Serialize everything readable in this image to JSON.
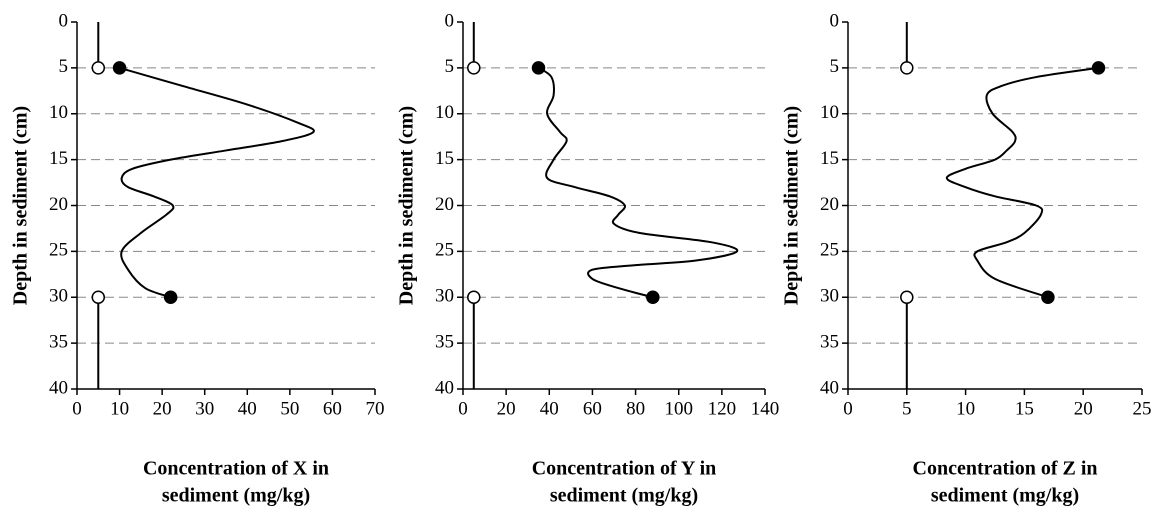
{
  "chart_data": [
    {
      "type": "line",
      "xlabel": [
        "Concentration of X in",
        "sediment (mg/kg)"
      ],
      "ylabel": "Depth in sediment (cm)",
      "xlim": [
        0,
        70
      ],
      "xticks": [
        0,
        10,
        20,
        30,
        40,
        50,
        60,
        70
      ],
      "ylim": [
        0,
        40
      ],
      "yticks": [
        0,
        5,
        10,
        15,
        20,
        25,
        30,
        35,
        40
      ],
      "y_inverted": true,
      "grid": true,
      "color": "#000000",
      "series": [
        {
          "x": [
            5,
            5
          ],
          "y": [
            0,
            5
          ]
        },
        {
          "x": [
            5,
            5
          ],
          "y": [
            30,
            40
          ]
        },
        {
          "x": [
            5,
            5
          ],
          "y": [
            5,
            30
          ],
          "line": false,
          "marker": "open"
        },
        {
          "x": [
            10,
            25,
            40,
            52,
            55.5,
            48,
            35,
            22,
            13,
            10.5,
            12,
            18,
            22.5,
            21,
            15,
            10.5,
            12,
            16,
            22
          ],
          "y": [
            5,
            7,
            9,
            11,
            12,
            13,
            14,
            15,
            16,
            17,
            18,
            19,
            20,
            21,
            23,
            25,
            27,
            29,
            30
          ],
          "smooth": true,
          "end_markers": "filled"
        }
      ]
    },
    {
      "type": "line",
      "xlabel": [
        "Concentration of Y in",
        "sediment (mg/kg)"
      ],
      "ylabel": "Depth in sediment (cm)",
      "xlim": [
        0,
        140
      ],
      "xticks": [
        0,
        20,
        40,
        60,
        80,
        100,
        120,
        140
      ],
      "ylim": [
        0,
        40
      ],
      "yticks": [
        0,
        5,
        10,
        15,
        20,
        25,
        30,
        35,
        40
      ],
      "y_inverted": true,
      "grid": true,
      "color": "#000000",
      "series": [
        {
          "x": [
            5,
            5
          ],
          "y": [
            0,
            5
          ]
        },
        {
          "x": [
            5,
            5
          ],
          "y": [
            30,
            40
          ]
        },
        {
          "x": [
            5,
            5
          ],
          "y": [
            5,
            30
          ],
          "line": false,
          "marker": "open"
        },
        {
          "x": [
            35,
            41,
            42,
            39,
            45,
            48,
            42,
            39,
            52,
            68,
            75,
            72,
            70,
            82,
            115,
            127,
            108,
            80,
            60,
            60,
            72,
            88
          ],
          "y": [
            5,
            6,
            8,
            10,
            12,
            13,
            15,
            17,
            18,
            19,
            20,
            21,
            22,
            23,
            24,
            25,
            26,
            26.5,
            27,
            28,
            29,
            30
          ],
          "smooth": true,
          "end_markers": "filled"
        }
      ]
    },
    {
      "type": "line",
      "xlabel": [
        "Concentration of Z in",
        "sediment (mg/kg)"
      ],
      "ylabel": "Depth in sediment (cm)",
      "xlim": [
        0,
        25
      ],
      "xticks": [
        0,
        5,
        10,
        15,
        20,
        25
      ],
      "ylim": [
        0,
        40
      ],
      "yticks": [
        0,
        5,
        10,
        15,
        20,
        25,
        30,
        35,
        40
      ],
      "y_inverted": true,
      "grid": true,
      "color": "#000000",
      "series": [
        {
          "x": [
            5,
            5
          ],
          "y": [
            0,
            5
          ]
        },
        {
          "x": [
            5,
            5
          ],
          "y": [
            30,
            40
          ]
        },
        {
          "x": [
            5,
            5
          ],
          "y": [
            5,
            30
          ],
          "line": false,
          "marker": "open"
        },
        {
          "x": [
            21.3,
            16,
            13,
            11.8,
            12.3,
            14,
            14.2,
            13.5,
            12.5,
            10,
            8.4,
            10,
            12.5,
            16,
            16.4,
            15,
            13.5,
            11,
            11,
            12.5,
            17
          ],
          "y": [
            5,
            6,
            7,
            8,
            10,
            12,
            13,
            14,
            15,
            16,
            17,
            18,
            19,
            20,
            21,
            23,
            24,
            25,
            26,
            28,
            30
          ],
          "smooth": true,
          "end_markers": "filled"
        }
      ]
    }
  ]
}
